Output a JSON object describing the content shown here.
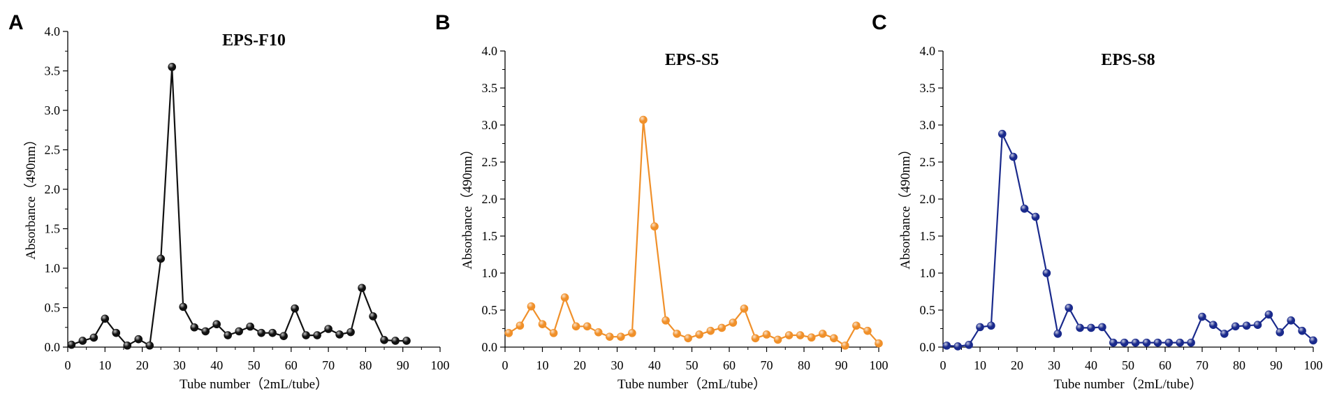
{
  "chart_data": [
    {
      "panel": "A",
      "type": "line",
      "title": "EPS-F10",
      "xlabel": "Tube number（2mL/tube）",
      "ylabel": "Absorbance（490nm）",
      "xlim": [
        0,
        100
      ],
      "ylim": [
        0,
        4.0
      ],
      "xticks": [
        "0",
        "10",
        "20",
        "30",
        "40",
        "50",
        "60",
        "70",
        "80",
        "90",
        "100"
      ],
      "yticks": [
        "0.0",
        "0.5",
        "1.0",
        "1.5",
        "2.0",
        "2.5",
        "3.0",
        "3.5",
        "4.0"
      ],
      "grid": false,
      "color": "#111111",
      "series": [
        {
          "x": [
            1,
            4,
            7,
            10,
            13,
            16,
            19,
            22,
            25,
            28,
            31,
            34,
            37,
            40,
            43,
            46,
            49,
            52,
            55,
            58,
            61,
            64,
            67,
            70,
            73,
            76,
            79,
            82,
            85,
            88,
            91
          ],
          "y": [
            0.03,
            0.08,
            0.12,
            0.36,
            0.18,
            0.02,
            0.1,
            0.02,
            1.12,
            3.55,
            0.51,
            0.25,
            0.2,
            0.29,
            0.15,
            0.2,
            0.26,
            0.18,
            0.18,
            0.14,
            0.49,
            0.15,
            0.15,
            0.23,
            0.16,
            0.19,
            0.75,
            0.39,
            0.09,
            0.08,
            0.08
          ]
        }
      ]
    },
    {
      "panel": "B",
      "type": "line",
      "title": "EPS-S5",
      "xlabel": "Tube number（2mL/tube）",
      "ylabel": "Absorbance（490nm）",
      "xlim": [
        0,
        100
      ],
      "ylim": [
        0,
        4.0
      ],
      "xticks": [
        "0",
        "10",
        "20",
        "30",
        "40",
        "50",
        "60",
        "70",
        "80",
        "90",
        "100"
      ],
      "yticks": [
        "0.0",
        "0.5",
        "1.0",
        "1.5",
        "2.0",
        "2.5",
        "3.0",
        "3.5",
        "4.0"
      ],
      "grid": false,
      "color": "#f0902a",
      "series": [
        {
          "x": [
            1,
            4,
            7,
            10,
            13,
            16,
            19,
            22,
            25,
            28,
            31,
            34,
            37,
            40,
            43,
            46,
            49,
            52,
            55,
            58,
            61,
            64,
            67,
            70,
            73,
            76,
            79,
            82,
            85,
            88,
            91,
            94,
            97,
            100
          ],
          "y": [
            0.19,
            0.29,
            0.55,
            0.31,
            0.19,
            0.67,
            0.28,
            0.28,
            0.2,
            0.14,
            0.14,
            0.19,
            3.07,
            1.63,
            0.36,
            0.18,
            0.12,
            0.17,
            0.22,
            0.26,
            0.33,
            0.52,
            0.12,
            0.17,
            0.1,
            0.16,
            0.16,
            0.13,
            0.18,
            0.12,
            0.02,
            0.29,
            0.22,
            0.05
          ]
        }
      ]
    },
    {
      "panel": "C",
      "type": "line",
      "title": "EPS-S8",
      "xlabel": "Tube number（2mL/tube）",
      "ylabel": "Absorbance（490nm）",
      "xlim": [
        0,
        100
      ],
      "ylim": [
        0,
        4.0
      ],
      "xticks": [
        "0",
        "10",
        "20",
        "30",
        "40",
        "50",
        "60",
        "70",
        "80",
        "90",
        "100"
      ],
      "yticks": [
        "0.0",
        "0.5",
        "1.0",
        "1.5",
        "2.0",
        "2.5",
        "3.0",
        "3.5",
        "4.0"
      ],
      "grid": false,
      "color": "#1a2a8c",
      "series": [
        {
          "x": [
            1,
            4,
            7,
            10,
            13,
            16,
            19,
            22,
            25,
            28,
            31,
            34,
            37,
            40,
            43,
            46,
            49,
            52,
            55,
            58,
            61,
            64,
            67,
            70,
            73,
            76,
            79,
            82,
            85,
            88,
            91,
            94,
            97,
            100
          ],
          "y": [
            0.02,
            0.01,
            0.03,
            0.27,
            0.29,
            2.88,
            2.57,
            1.87,
            1.76,
            1.0,
            0.18,
            0.53,
            0.26,
            0.26,
            0.27,
            0.06,
            0.06,
            0.06,
            0.06,
            0.06,
            0.06,
            0.06,
            0.06,
            0.41,
            0.3,
            0.18,
            0.28,
            0.29,
            0.3,
            0.44,
            0.2,
            0.36,
            0.22,
            0.09
          ]
        }
      ]
    }
  ]
}
